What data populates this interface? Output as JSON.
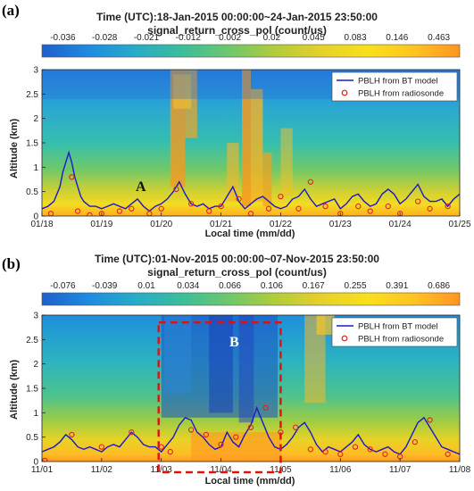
{
  "chart_data": [
    {
      "panel_label": "(a)",
      "type": "heatmap",
      "title": "Time (UTC):18-Jan-2015 00:00:00~24-Jan-2015 23:50:00",
      "colorbar_label": "signal_return_cross_pol (count/us)",
      "colorbar_ticks": [
        "-0.036",
        "-0.028",
        "-0.021",
        "-0.012",
        "0.002",
        "0.02",
        "0.045",
        "0.083",
        "0.146",
        "0.463"
      ],
      "xlabel": "Local time (mm/dd)",
      "ylabel": "Altitude (km)",
      "xticks": [
        "01/18",
        "01/19",
        "01/20",
        "01/21",
        "01/22",
        "01/23",
        "01/24",
        "01/25"
      ],
      "yticks": [
        "0",
        "0.5",
        "1",
        "1.5",
        "2",
        "2.5",
        "3"
      ],
      "ylim": [
        0,
        3
      ],
      "legend_position": "top-right",
      "annotation": "A",
      "series": [
        {
          "name": "PBLH from BT model",
          "type": "line",
          "color": "#1a1acc",
          "x": [
            0,
            0.1,
            0.2,
            0.3,
            0.35,
            0.4,
            0.45,
            0.5,
            0.55,
            0.6,
            0.65,
            0.7,
            0.75,
            0.8,
            0.9,
            1.0,
            1.1,
            1.2,
            1.3,
            1.4,
            1.5,
            1.6,
            1.7,
            1.8,
            1.9,
            2.0,
            2.1,
            2.2,
            2.3,
            2.4,
            2.5,
            2.6,
            2.7,
            2.8,
            2.9,
            3.0,
            3.1,
            3.2,
            3.3,
            3.4,
            3.5,
            3.6,
            3.7,
            3.8,
            3.9,
            4.0,
            4.1,
            4.2,
            4.3,
            4.4,
            4.5,
            4.6,
            4.7,
            4.8,
            4.9,
            5.0,
            5.1,
            5.2,
            5.3,
            5.4,
            5.5,
            5.6,
            5.7,
            5.8,
            5.9,
            6.0,
            6.1,
            6.2,
            6.3,
            6.4,
            6.5,
            6.6,
            6.7,
            6.8,
            6.9,
            7.0
          ],
          "y": [
            0.15,
            0.2,
            0.3,
            0.6,
            0.9,
            1.1,
            1.3,
            1.1,
            0.8,
            0.6,
            0.4,
            0.3,
            0.25,
            0.2,
            0.2,
            0.15,
            0.2,
            0.25,
            0.2,
            0.15,
            0.25,
            0.35,
            0.2,
            0.1,
            0.2,
            0.25,
            0.35,
            0.5,
            0.7,
            0.45,
            0.25,
            0.2,
            0.25,
            0.15,
            0.2,
            0.2,
            0.4,
            0.6,
            0.3,
            0.15,
            0.25,
            0.35,
            0.4,
            0.3,
            0.2,
            0.15,
            0.2,
            0.35,
            0.4,
            0.55,
            0.35,
            0.2,
            0.25,
            0.3,
            0.35,
            0.15,
            0.25,
            0.4,
            0.45,
            0.3,
            0.2,
            0.25,
            0.45,
            0.55,
            0.45,
            0.25,
            0.35,
            0.5,
            0.65,
            0.4,
            0.3,
            0.3,
            0.35,
            0.2,
            0.35,
            0.45
          ]
        },
        {
          "name": "PBLH from radiosonde",
          "type": "scatter",
          "color": "#e02020",
          "x": [
            0.15,
            0.5,
            0.6,
            0.8,
            1.0,
            1.3,
            1.5,
            1.8,
            2.0,
            2.25,
            2.5,
            2.8,
            3.0,
            3.3,
            3.5,
            3.8,
            4.0,
            4.3,
            4.5,
            4.75,
            5.0,
            5.3,
            5.5,
            5.8,
            6.0,
            6.3,
            6.5,
            6.8
          ],
          "y": [
            0.05,
            0.8,
            0.1,
            0.02,
            0.05,
            0.1,
            0.15,
            0.05,
            0.15,
            0.55,
            0.25,
            0.1,
            0.2,
            0.35,
            0.05,
            0.15,
            0.4,
            0.15,
            0.7,
            0.2,
            0.05,
            0.2,
            0.1,
            0.2,
            0.05,
            0.3,
            0.15,
            0.2
          ]
        }
      ]
    },
    {
      "panel_label": "(b)",
      "type": "heatmap",
      "title": "Time (UTC):01-Nov-2015 00:00:00~07-Nov-2015 23:50:00",
      "colorbar_label": "signal_return_cross_pol (count/us)",
      "colorbar_ticks": [
        "-0.076",
        "-0.039",
        "0.01",
        "0.034",
        "0.066",
        "0.106",
        "0.167",
        "0.255",
        "0.391",
        "0.686"
      ],
      "xlabel": "Local time (mm/dd)",
      "ylabel": "Altitude (km)",
      "xticks": [
        "11/01",
        "11/02",
        "11/03",
        "11/04",
        "11/05",
        "11/06",
        "11/07",
        "11/08"
      ],
      "yticks": [
        "0",
        "0.5",
        "1",
        "1.5",
        "2",
        "2.5",
        "3"
      ],
      "ylim": [
        0,
        3
      ],
      "legend_position": "top-right",
      "annotation": "B",
      "highlight_box": {
        "x": [
          2.0,
          4.0
        ],
        "y": [
          0,
          2.85
        ]
      },
      "series": [
        {
          "name": "PBLH from BT model",
          "type": "line",
          "color": "#1a1acc",
          "x": [
            0,
            0.1,
            0.2,
            0.3,
            0.4,
            0.5,
            0.6,
            0.7,
            0.8,
            0.9,
            1.0,
            1.1,
            1.2,
            1.3,
            1.4,
            1.5,
            1.6,
            1.7,
            1.8,
            1.9,
            2.0,
            2.1,
            2.2,
            2.3,
            2.4,
            2.5,
            2.6,
            2.7,
            2.8,
            2.9,
            3.0,
            3.1,
            3.2,
            3.3,
            3.4,
            3.5,
            3.6,
            3.7,
            3.8,
            3.9,
            4.0,
            4.1,
            4.2,
            4.3,
            4.4,
            4.5,
            4.6,
            4.7,
            4.8,
            4.9,
            5.0,
            5.1,
            5.2,
            5.3,
            5.4,
            5.5,
            5.6,
            5.7,
            5.8,
            5.9,
            6.0,
            6.1,
            6.2,
            6.3,
            6.4,
            6.5,
            6.6,
            6.7,
            6.8,
            6.9,
            7.0
          ],
          "y": [
            0.2,
            0.25,
            0.3,
            0.4,
            0.55,
            0.45,
            0.3,
            0.25,
            0.3,
            0.25,
            0.2,
            0.3,
            0.35,
            0.3,
            0.45,
            0.6,
            0.5,
            0.35,
            0.3,
            0.3,
            0.2,
            0.35,
            0.5,
            0.75,
            0.9,
            0.85,
            0.6,
            0.5,
            0.35,
            0.25,
            0.3,
            0.6,
            0.4,
            0.3,
            0.55,
            0.75,
            1.1,
            0.8,
            0.5,
            0.3,
            0.25,
            0.35,
            0.5,
            0.7,
            0.8,
            0.6,
            0.35,
            0.2,
            0.3,
            0.25,
            0.2,
            0.3,
            0.4,
            0.55,
            0.35,
            0.25,
            0.2,
            0.25,
            0.3,
            0.2,
            0.15,
            0.3,
            0.55,
            0.8,
            0.9,
            0.7,
            0.5,
            0.3,
            0.25,
            0.2,
            0.15
          ]
        },
        {
          "name": "PBLH from radiosonde",
          "type": "scatter",
          "color": "#e02020",
          "x": [
            0.05,
            0.5,
            1.0,
            1.5,
            2.0,
            2.15,
            2.5,
            2.75,
            3.0,
            3.25,
            3.5,
            3.75,
            4.0,
            4.25,
            4.5,
            4.75,
            5.0,
            5.25,
            5.5,
            5.75,
            6.0,
            6.25,
            6.5,
            6.8
          ],
          "y": [
            0.02,
            0.55,
            0.3,
            0.6,
            0.3,
            0.2,
            0.65,
            0.55,
            0.35,
            0.5,
            0.7,
            1.1,
            0.6,
            0.7,
            0.25,
            0.2,
            0.15,
            0.3,
            0.25,
            0.15,
            0.1,
            0.4,
            0.85,
            0.15
          ]
        }
      ]
    }
  ]
}
